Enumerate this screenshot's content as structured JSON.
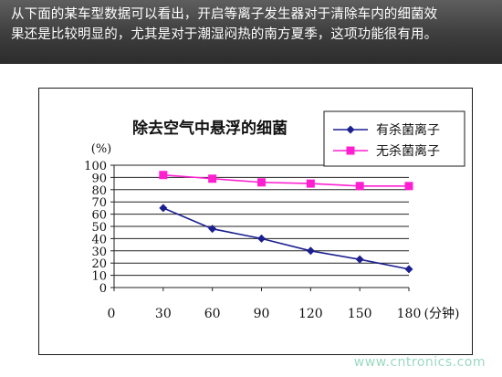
{
  "banner": {
    "line1": "从下面的某车型数据可以看出，开启等离子发生器对于清除车内的细菌效",
    "line2": "果还是比较明显的，尤其是对于潮湿闷热的南方夏季，这项功能很有用。"
  },
  "watermark": "www.cntronics.com",
  "chart_data": {
    "type": "line",
    "title": "除去空气中悬浮的细菌",
    "ylabel": "(%)",
    "xlabel": "(分钟)",
    "x": [
      30,
      60,
      90,
      120,
      150,
      180
    ],
    "x_ticks": [
      "0",
      "30",
      "60",
      "90",
      "120",
      "150",
      "180"
    ],
    "y_ticks": [
      "0",
      "10",
      "20",
      "30",
      "40",
      "50",
      "60",
      "70",
      "80",
      "90",
      "100"
    ],
    "xlim": [
      0,
      180
    ],
    "ylim": [
      0,
      100
    ],
    "grid": true,
    "legend_position": "top-right",
    "series": [
      {
        "name": "有杀菌离子",
        "values": [
          65,
          48,
          40,
          30,
          23,
          15
        ],
        "color": "#1b1f8f",
        "marker": "diamond"
      },
      {
        "name": "无杀菌离子",
        "values": [
          92,
          89,
          86,
          85,
          83,
          83
        ],
        "color": "#ff1fd0",
        "marker": "square"
      }
    ]
  }
}
